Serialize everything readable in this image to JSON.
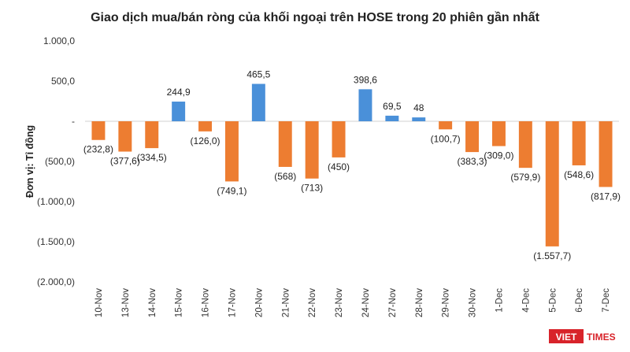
{
  "chart_data": {
    "type": "bar",
    "title": "Giao dịch mua/bán ròng của khối ngoại trên HOSE trong 20 phiên gần nhất",
    "ylabel": "Đơn vị: Tỉ đồng",
    "xlabel": "",
    "ylim": [
      -2000,
      1000
    ],
    "yticks": [
      1000,
      500,
      0,
      -500,
      -1000,
      -1500,
      -2000
    ],
    "ytick_labels": [
      "1.000,0",
      "500,0",
      "-",
      "(500,0)",
      "(1.000,0)",
      "(1.500,0)",
      "(2.000,0)"
    ],
    "categories": [
      "10-Nov",
      "13-Nov",
      "14-Nov",
      "15-Nov",
      "16-Nov",
      "17-Nov",
      "20-Nov",
      "21-Nov",
      "22-Nov",
      "23-Nov",
      "24-Nov",
      "27-Nov",
      "28-Nov",
      "29-Nov",
      "30-Nov",
      "1-Dec",
      "4-Dec",
      "5-Dec",
      "6-Dec",
      "7-Dec"
    ],
    "values": [
      -232.8,
      -377.6,
      -334.5,
      244.9,
      -126.0,
      -749.1,
      465.5,
      -568,
      -713,
      -450,
      398.6,
      69.5,
      48,
      -100.7,
      -383.3,
      -309.0,
      -579.9,
      -1557.7,
      -548.6,
      -817.9
    ],
    "data_labels": [
      "(232,8)",
      "(377,6)",
      "(334,5)",
      "244,9",
      "(126,0)",
      "(749,1)",
      "465,5",
      "(568)",
      "(713)",
      "(450)",
      "398,6",
      "69,5",
      "48",
      "(100,7)",
      "(383,3)",
      "(309,0)",
      "(579,9)",
      "(1.557,7)",
      "(548,6)",
      "(817,9)"
    ],
    "colors": {
      "positive": "#4a90d9",
      "negative": "#ed7d31"
    }
  },
  "branding": {
    "logo_main": "VIET",
    "logo_sub": "TIMES",
    "logo_color": "#d8232a"
  }
}
